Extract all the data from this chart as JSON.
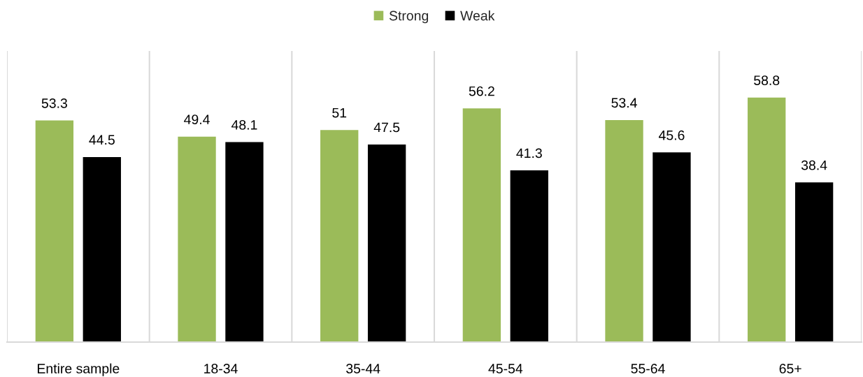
{
  "chart_data": {
    "type": "bar",
    "categories": [
      "Entire sample",
      "18-34",
      "35-44",
      "45-54",
      "55-64",
      "65+"
    ],
    "series": [
      {
        "name": "Strong",
        "color": "#9bbb59",
        "values": [
          53.3,
          49.4,
          51,
          56.2,
          53.4,
          58.8
        ]
      },
      {
        "name": "Weak",
        "color": "#000000",
        "values": [
          44.5,
          48.1,
          47.5,
          41.3,
          45.6,
          38.4
        ]
      }
    ],
    "ylim": [
      0,
      70
    ],
    "data_labels": true,
    "grid": "x",
    "legend": "top",
    "tick_labels": "x"
  }
}
